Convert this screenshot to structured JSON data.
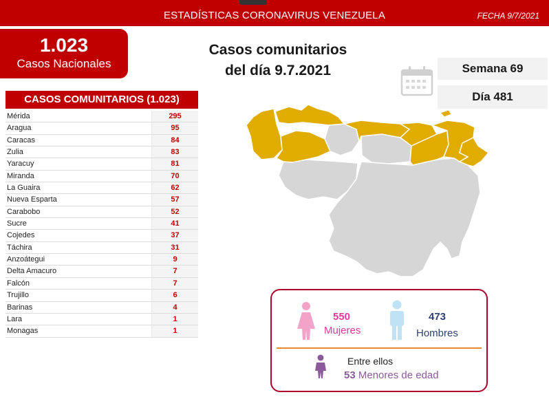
{
  "header": {
    "title": "ESTADÍSTICAS CORONAVIRUS VENEZUELA",
    "date": "FECHA 9/7/2021"
  },
  "national": {
    "count": "1.023",
    "label": "Casos Nacionales"
  },
  "headline": {
    "line1": "Casos comunitarios",
    "line2": "del día 9.7.2021"
  },
  "week": {
    "label": "Semana 69"
  },
  "day": {
    "label": "Día 481"
  },
  "table": {
    "header": "CASOS COMUNITARIOS (1.023)",
    "rows": [
      {
        "state": "Mérida",
        "value": "295"
      },
      {
        "state": "Aragua",
        "value": "95"
      },
      {
        "state": "Caracas",
        "value": "84"
      },
      {
        "state": "Zulia",
        "value": "83"
      },
      {
        "state": "Yaracuy",
        "value": "81"
      },
      {
        "state": "Miranda",
        "value": "70"
      },
      {
        "state": "La Guaira",
        "value": "62"
      },
      {
        "state": "Nueva Esparta",
        "value": "57"
      },
      {
        "state": "Carabobo",
        "value": "52"
      },
      {
        "state": "Sucre",
        "value": "41"
      },
      {
        "state": "Cojedes",
        "value": "37"
      },
      {
        "state": "Táchira",
        "value": "31"
      },
      {
        "state": "Anzoátegui",
        "value": "9"
      },
      {
        "state": "Delta Amacuro",
        "value": "7"
      },
      {
        "state": "Falcón",
        "value": "7"
      },
      {
        "state": "Trujillo",
        "value": "6"
      },
      {
        "state": "Barinas",
        "value": "4"
      },
      {
        "state": "Lara",
        "value": "1"
      },
      {
        "state": "Monagas",
        "value": "1"
      }
    ]
  },
  "gender": {
    "female_count": "550",
    "female_label": "Mujeres",
    "male_count": "473",
    "male_label": "Hombres",
    "among_label": "Entre ellos",
    "minors_count": "53",
    "minors_label": "Menores de edad"
  },
  "colors": {
    "brand_red": "#c00000",
    "affected_state": "#e0ac00",
    "unaffected_state": "#d6d6d6",
    "female": "#f4a3c8",
    "male": "#bfe3f5",
    "minor": "#8a5a9a"
  },
  "icons": {
    "calendar": "calendar-icon",
    "female": "female-person-icon",
    "male": "male-person-icon",
    "minor": "child-person-icon"
  }
}
